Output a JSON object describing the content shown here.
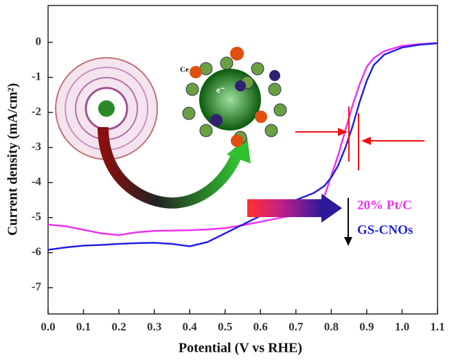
{
  "chart_data": {
    "type": "line",
    "x_label": "Potential (V vs RHE)",
    "y_label": "Current density (mA/cm²)",
    "x": [
      0,
      0.05,
      0.1,
      0.15,
      0.2,
      0.25,
      0.3,
      0.35,
      0.4,
      0.45,
      0.5,
      0.55,
      0.6,
      0.65,
      0.7,
      0.75,
      0.78,
      0.8,
      0.82,
      0.84,
      0.86,
      0.88,
      0.9,
      0.92,
      0.95,
      1.0,
      1.05,
      1.1
    ],
    "series": [
      {
        "name": "20% Pt/C",
        "color": "#f030f0",
        "values": [
          -5.2,
          -5.25,
          -5.35,
          -5.45,
          -5.5,
          -5.42,
          -5.38,
          -5.37,
          -5.36,
          -5.34,
          -5.3,
          -5.22,
          -5.12,
          -5.02,
          -4.92,
          -4.75,
          -4.4,
          -3.8,
          -3.2,
          -2.5,
          -1.8,
          -1.2,
          -0.7,
          -0.45,
          -0.25,
          -0.1,
          -0.05,
          -0.02
        ]
      },
      {
        "name": "GS-CNOs",
        "color": "#2020e0",
        "values": [
          -5.92,
          -5.85,
          -5.8,
          -5.78,
          -5.75,
          -5.73,
          -5.72,
          -5.75,
          -5.82,
          -5.7,
          -5.45,
          -5.2,
          -4.95,
          -4.7,
          -4.5,
          -4.3,
          -4.1,
          -3.85,
          -3.5,
          -3.0,
          -2.4,
          -1.7,
          -1.1,
          -0.65,
          -0.35,
          -0.15,
          -0.07,
          -0.03
        ]
      }
    ],
    "xlim": [
      0,
      1.1
    ],
    "xticks": [
      {
        "value": 0,
        "label": "0.0"
      },
      0.1,
      0.2,
      0.3,
      0.4,
      0.5,
      0.6,
      0.7,
      0.8,
      0.9,
      {
        "value": 1,
        "label": "1.0"
      },
      1.1
    ],
    "ylim": [
      -7.75,
      1.05
    ],
    "yticks": [
      0,
      -1,
      -2,
      -3,
      -4,
      -5,
      -6,
      -7
    ],
    "inset_labels": [
      "Ce",
      "e⁻"
    ]
  }
}
